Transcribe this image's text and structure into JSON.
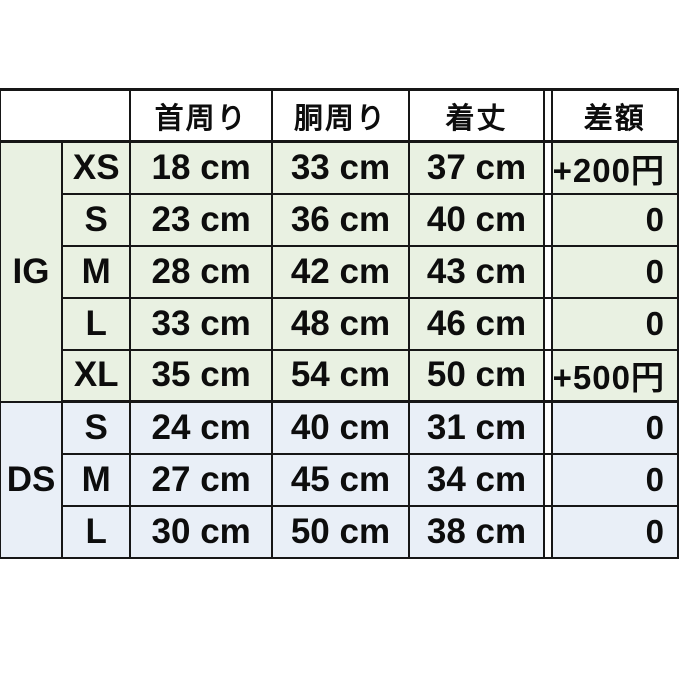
{
  "table": {
    "headers": {
      "neck": "首周り",
      "girth": "胴周り",
      "length": "着丈",
      "diff": "差額"
    },
    "groups": [
      {
        "label": "IG",
        "rows": [
          {
            "size": "XS",
            "neck": "18 cm",
            "girth": "33 cm",
            "length": "37 cm",
            "diff": "+200円"
          },
          {
            "size": "S",
            "neck": "23 cm",
            "girth": "36 cm",
            "length": "40 cm",
            "diff": "0"
          },
          {
            "size": "M",
            "neck": "28 cm",
            "girth": "42 cm",
            "length": "43 cm",
            "diff": "0"
          },
          {
            "size": "L",
            "neck": "33 cm",
            "girth": "48 cm",
            "length": "46 cm",
            "diff": "0"
          },
          {
            "size": "XL",
            "neck": "35 cm",
            "girth": "54 cm",
            "length": "50 cm",
            "diff": "+500円"
          }
        ]
      },
      {
        "label": "DS",
        "rows": [
          {
            "size": "S",
            "neck": "24 cm",
            "girth": "40 cm",
            "length": "31 cm",
            "diff": "0"
          },
          {
            "size": "M",
            "neck": "27 cm",
            "girth": "45 cm",
            "length": "34 cm",
            "diff": "0"
          },
          {
            "size": "L",
            "neck": "30 cm",
            "girth": "50 cm",
            "length": "38 cm",
            "diff": "0"
          }
        ]
      }
    ],
    "colors": {
      "ig_row_bg": "#e9f1e2",
      "ds_row_bg": "#e9eff7",
      "header_bg": "#ffffff",
      "border": "#161616"
    }
  }
}
